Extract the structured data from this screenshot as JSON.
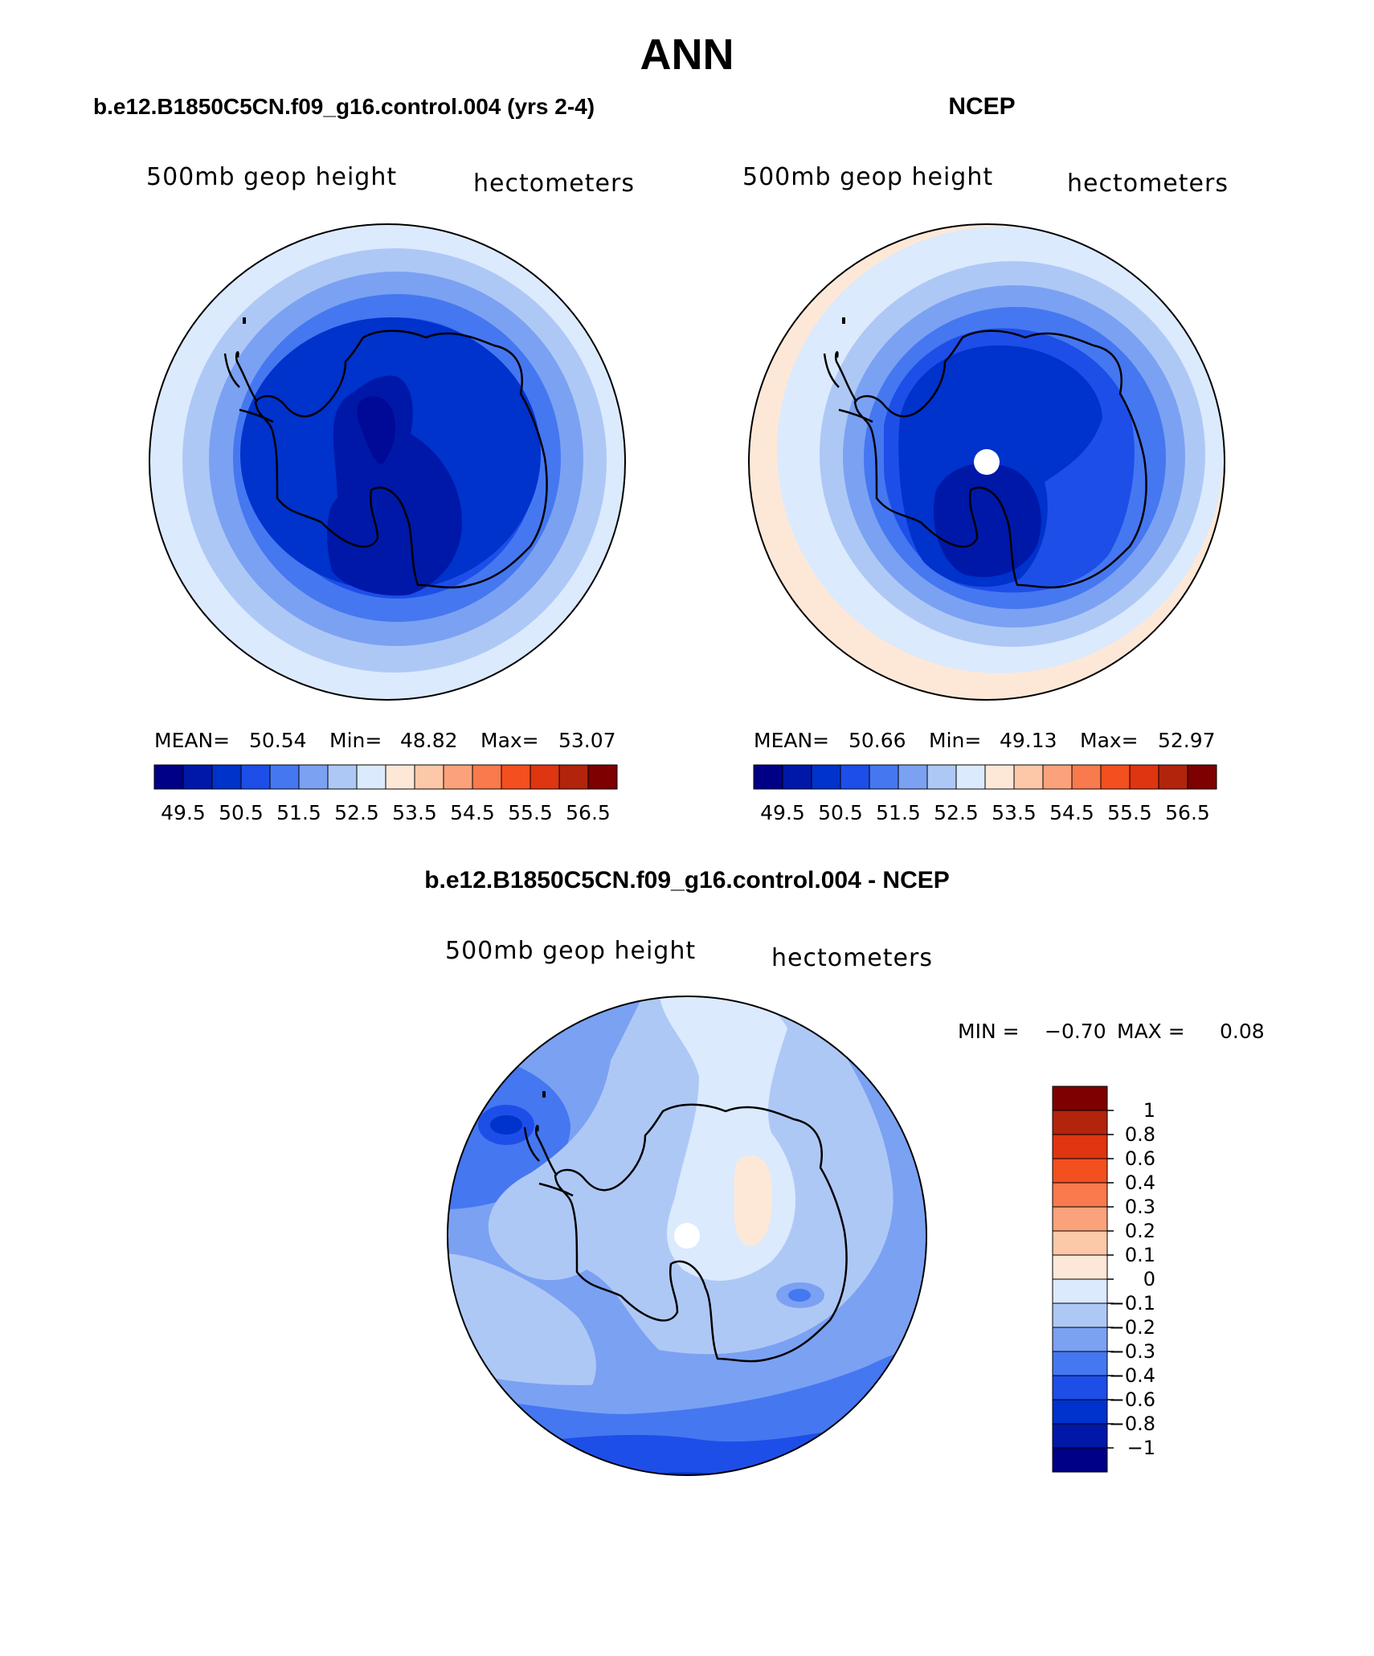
{
  "chart_data": [
    {
      "type": "heatmap",
      "panel": "model",
      "title": "b.e12.B1850C5CN.f09_g16.control.004 (yrs 2-4)",
      "left_label": "500mb geop height",
      "right_label": "hectometers",
      "stats": {
        "mean_label": "MEAN=",
        "mean": "50.54",
        "min_label": "Min=",
        "min": "48.82",
        "max_label": "Max=",
        "max": "53.07"
      },
      "colorbar": {
        "orientation": "horizontal",
        "tick_labels": [
          "49.5",
          "50.5",
          "51.5",
          "52.5",
          "53.5",
          "54.5",
          "55.5",
          "56.5"
        ],
        "colors": [
          "#000087",
          "#0018a8",
          "#0032cc",
          "#1e4ee8",
          "#4577f0",
          "#7ba1f2",
          "#aec8f6",
          "#dbeafd",
          "#fde8d8",
          "#fcc8a8",
          "#fba27c",
          "#f97a4c",
          "#f34f1f",
          "#df3510",
          "#b2240c",
          "#7e0000"
        ]
      },
      "contour_levels_hm": [
        49.5,
        50,
        50.5,
        51,
        51.5,
        52,
        52.5,
        53
      ]
    },
    {
      "type": "heatmap",
      "panel": "obs",
      "title": "NCEP",
      "left_label": "500mb geop height",
      "right_label": "hectometers",
      "stats": {
        "mean_label": "MEAN=",
        "mean": "50.66",
        "min_label": "Min=",
        "min": "49.13",
        "max_label": "Max=",
        "max": "52.97"
      },
      "colorbar": {
        "orientation": "horizontal",
        "tick_labels": [
          "49.5",
          "50.5",
          "51.5",
          "52.5",
          "53.5",
          "54.5",
          "55.5",
          "56.5"
        ],
        "colors": [
          "#000087",
          "#0018a8",
          "#0032cc",
          "#1e4ee8",
          "#4577f0",
          "#7ba1f2",
          "#aec8f6",
          "#dbeafd",
          "#fde8d8",
          "#fcc8a8",
          "#fba27c",
          "#f97a4c",
          "#f34f1f",
          "#df3510",
          "#b2240c",
          "#7e0000"
        ]
      },
      "contour_levels_hm": [
        49.5,
        50,
        50.5,
        51,
        51.5,
        52,
        52.5,
        53
      ]
    },
    {
      "type": "heatmap",
      "panel": "difference",
      "title": "b.e12.B1850C5CN.f09_g16.control.004 - NCEP",
      "left_label": "500mb geop height",
      "right_label": "hectometers",
      "stats": {
        "min_label": "MIN =",
        "min": "−0.70",
        "max_label": "MAX =",
        "max": "0.08"
      },
      "colorbar": {
        "orientation": "vertical",
        "tick_labels": [
          "1",
          "0.8",
          "0.6",
          "0.4",
          "0.3",
          "0.2",
          "0.1",
          "0",
          "−0.1",
          "−0.2",
          "−0.3",
          "−0.4",
          "−0.6",
          "−0.8",
          "−1"
        ],
        "colors": [
          "#7e0000",
          "#b2240c",
          "#df3510",
          "#f34f1f",
          "#f97a4c",
          "#fba27c",
          "#fcc8a8",
          "#fde8d8",
          "#dbeafd",
          "#aec8f6",
          "#7ba1f2",
          "#4577f0",
          "#1e4ee8",
          "#0032cc",
          "#0018a8",
          "#000087"
        ]
      }
    }
  ],
  "figure_title": "ANN"
}
